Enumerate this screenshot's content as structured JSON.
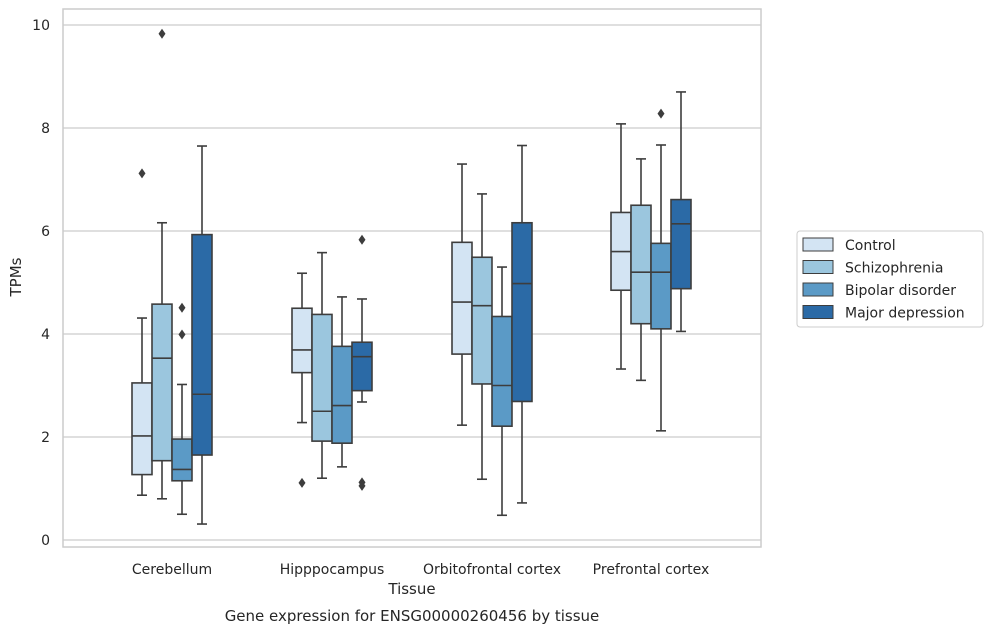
{
  "chart_data": {
    "type": "box",
    "caption": "Gene expression for ENSG00000260456 by tissue",
    "xlabel": "Tissue",
    "ylabel": "TPMs",
    "ylim": [
      -0.15,
      10.3
    ],
    "yticks": [
      0,
      2,
      4,
      6,
      8,
      10
    ],
    "grid": true,
    "legend_position": "right",
    "categories": [
      "Cerebellum",
      "Hipppocampus",
      "Orbitofrontal cortex",
      "Prefrontal cortex"
    ],
    "series": [
      {
        "name": "Control",
        "color": "#d3e4f3",
        "boxes": [
          {
            "whislo": 0.87,
            "q1": 1.27,
            "med": 2.02,
            "q3": 3.05,
            "whishi": 4.31,
            "fliers": [
              7.12
            ]
          },
          {
            "whislo": 2.28,
            "q1": 3.25,
            "med": 3.69,
            "q3": 4.5,
            "whishi": 5.18,
            "fliers": [
              1.11
            ]
          },
          {
            "whislo": 2.23,
            "q1": 3.61,
            "med": 4.62,
            "q3": 5.78,
            "whishi": 7.3,
            "fliers": []
          },
          {
            "whislo": 3.32,
            "q1": 4.85,
            "med": 5.6,
            "q3": 6.36,
            "whishi": 8.08,
            "fliers": []
          }
        ]
      },
      {
        "name": "Schizophrenia",
        "color": "#9bc6de",
        "boxes": [
          {
            "whislo": 0.8,
            "q1": 1.54,
            "med": 3.53,
            "q3": 4.58,
            "whishi": 6.16,
            "fliers": [
              9.83
            ]
          },
          {
            "whislo": 1.2,
            "q1": 1.92,
            "med": 2.5,
            "q3": 4.38,
            "whishi": 5.58,
            "fliers": []
          },
          {
            "whislo": 1.18,
            "q1": 3.03,
            "med": 4.55,
            "q3": 5.49,
            "whishi": 6.72,
            "fliers": []
          },
          {
            "whislo": 3.1,
            "q1": 4.2,
            "med": 5.2,
            "q3": 6.5,
            "whishi": 7.4,
            "fliers": []
          }
        ]
      },
      {
        "name": "Bipolar disorder",
        "color": "#5b9ac6",
        "boxes": [
          {
            "whislo": 0.5,
            "q1": 1.15,
            "med": 1.37,
            "q3": 1.96,
            "whishi": 3.02,
            "fliers": [
              4.51,
              3.99
            ]
          },
          {
            "whislo": 1.42,
            "q1": 1.88,
            "med": 2.61,
            "q3": 3.76,
            "whishi": 4.72,
            "fliers": []
          },
          {
            "whislo": 0.48,
            "q1": 2.21,
            "med": 3.0,
            "q3": 4.34,
            "whishi": 5.3,
            "fliers": []
          },
          {
            "whislo": 2.12,
            "q1": 4.1,
            "med": 5.2,
            "q3": 5.76,
            "whishi": 7.67,
            "fliers": [
              8.28
            ]
          }
        ]
      },
      {
        "name": "Major depression",
        "color": "#2b6aa6",
        "boxes": [
          {
            "whislo": 0.31,
            "q1": 1.65,
            "med": 2.83,
            "q3": 5.93,
            "whishi": 7.65,
            "fliers": []
          },
          {
            "whislo": 2.68,
            "q1": 2.9,
            "med": 3.56,
            "q3": 3.84,
            "whishi": 4.68,
            "fliers": [
              5.83,
              1.12,
              1.05
            ]
          },
          {
            "whislo": 0.72,
            "q1": 2.69,
            "med": 4.98,
            "q3": 6.16,
            "whishi": 7.66,
            "fliers": []
          },
          {
            "whislo": 4.05,
            "q1": 4.88,
            "med": 6.14,
            "q3": 6.61,
            "whishi": 8.7,
            "fliers": []
          }
        ]
      }
    ]
  }
}
